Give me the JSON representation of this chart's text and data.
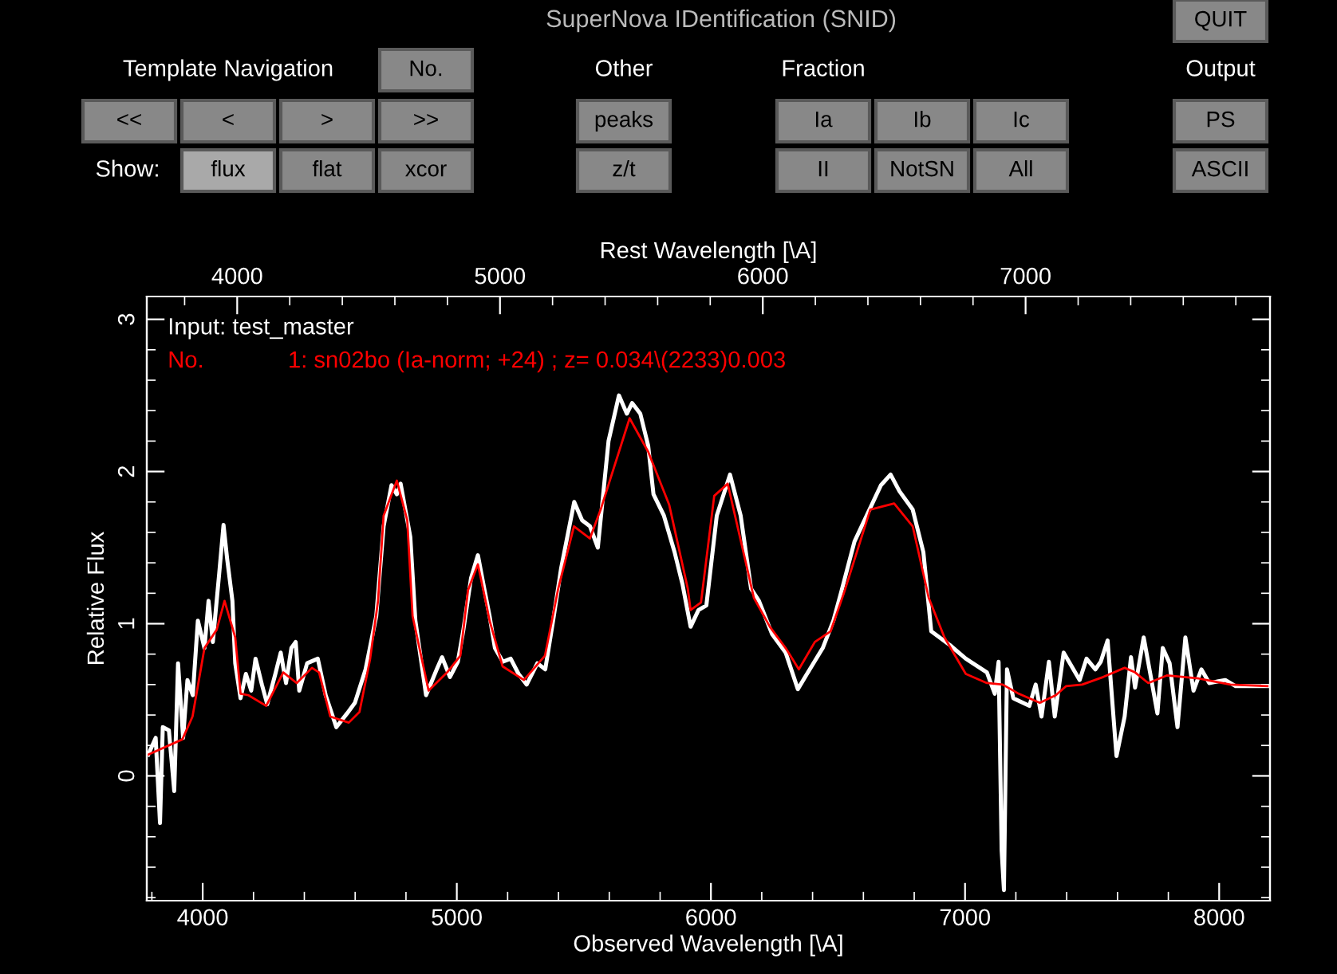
{
  "chart_data": {
    "type": "line",
    "title": "SuperNova IDentification (SNID)",
    "xlabel": "Observed Wavelength [\\A]",
    "x2label": "Rest Wavelength [\\A]",
    "ylabel": "Relative Flux",
    "xlim": [
      3780,
      8200
    ],
    "xticks": [
      4000,
      5000,
      6000,
      7000,
      8000
    ],
    "x2lim": [
      3656,
      7930
    ],
    "x2ticks": [
      4000,
      5000,
      6000,
      7000
    ],
    "ylim": [
      -0.82,
      3.15
    ],
    "yticks": [
      0,
      1,
      2,
      3
    ],
    "grid": false,
    "legend": "top left",
    "marker": "none",
    "line_style": "solid",
    "series": [
      {
        "name": "Input: test_master",
        "color": "#ffffff",
        "x": [
          3786,
          3815,
          3832,
          3843,
          3867,
          3888,
          3903,
          3923,
          3940,
          3961,
          3981,
          4007,
          4023,
          4040,
          4065,
          4082,
          4096,
          4117,
          4128,
          4149,
          4170,
          4191,
          4208,
          4233,
          4254,
          4286,
          4307,
          4328,
          4349,
          4366,
          4380,
          4411,
          4453,
          4484,
          4526,
          4568,
          4599,
          4641,
          4683,
          4712,
          4743,
          4764,
          4779,
          4817,
          4837,
          4879,
          4921,
          4942,
          4973,
          5004,
          5025,
          5056,
          5083,
          5108,
          5129,
          5150,
          5181,
          5212,
          5243,
          5275,
          5317,
          5348,
          5379,
          5410,
          5462,
          5493,
          5524,
          5555,
          5576,
          5597,
          5638,
          5669,
          5690,
          5722,
          5753,
          5774,
          5815,
          5857,
          5888,
          5920,
          5951,
          5982,
          6023,
          6075,
          6117,
          6158,
          6189,
          6241,
          6294,
          6342,
          6378,
          6440,
          6482,
          6513,
          6565,
          6669,
          6707,
          6742,
          6794,
          6836,
          6867,
          6940,
          7003,
          7086,
          7117,
          7132,
          7144,
          7153,
          7165,
          7190,
          7253,
          7278,
          7301,
          7330,
          7353,
          7388,
          7451,
          7478,
          7513,
          7534,
          7561,
          7596,
          7628,
          7653,
          7669,
          7703,
          7728,
          7757,
          7778,
          7805,
          7836,
          7867,
          7899,
          7930,
          7961,
          8024,
          8065,
          8190
        ],
        "values": [
          0.14,
          0.25,
          -0.31,
          0.32,
          0.3,
          -0.1,
          0.74,
          0.25,
          0.63,
          0.53,
          1.02,
          0.84,
          1.15,
          0.88,
          1.33,
          1.65,
          1.43,
          1.15,
          0.74,
          0.51,
          0.67,
          0.56,
          0.77,
          0.6,
          0.47,
          0.67,
          0.81,
          0.61,
          0.84,
          0.88,
          0.56,
          0.74,
          0.77,
          0.53,
          0.32,
          0.41,
          0.48,
          0.7,
          1.05,
          1.64,
          1.91,
          1.85,
          1.92,
          1.57,
          1.02,
          0.53,
          0.7,
          0.78,
          0.65,
          0.75,
          0.95,
          1.3,
          1.45,
          1.23,
          1.05,
          0.84,
          0.75,
          0.77,
          0.67,
          0.6,
          0.74,
          0.7,
          1.02,
          1.36,
          1.8,
          1.68,
          1.64,
          1.5,
          1.85,
          2.2,
          2.5,
          2.38,
          2.45,
          2.38,
          2.17,
          1.85,
          1.71,
          1.47,
          1.26,
          0.98,
          1.09,
          1.12,
          1.71,
          1.98,
          1.71,
          1.23,
          1.15,
          0.93,
          0.81,
          0.57,
          0.67,
          0.84,
          1.02,
          1.21,
          1.54,
          1.91,
          1.98,
          1.87,
          1.75,
          1.47,
          0.95,
          0.86,
          0.77,
          0.68,
          0.54,
          0.75,
          -0.49,
          -0.75,
          0.7,
          0.51,
          0.46,
          0.6,
          0.39,
          0.75,
          0.39,
          0.81,
          0.63,
          0.77,
          0.7,
          0.75,
          0.89,
          0.13,
          0.39,
          0.78,
          0.58,
          0.91,
          0.68,
          0.41,
          0.84,
          0.74,
          0.32,
          0.91,
          0.56,
          0.7,
          0.61,
          0.63,
          0.59,
          0.59
        ]
      },
      {
        "name": "No.             1: sn02bo (Ia-norm; +24) ; z= 0.034\\(2233)0.003",
        "color": "#ff0000",
        "x": [
          3786,
          3920,
          3960,
          4007,
          4055,
          4086,
          4128,
          4149,
          4180,
          4250,
          4317,
          4370,
          4430,
          4458,
          4502,
          4575,
          4617,
          4659,
          4690,
          4712,
          4764,
          4805,
          4826,
          4889,
          4962,
          5014,
          5044,
          5083,
          5117,
          5129,
          5180,
          5264,
          5347,
          5399,
          5461,
          5524,
          5566,
          5680,
          5753,
          5836,
          5909,
          5920,
          5961,
          6013,
          6066,
          6169,
          6232,
          6294,
          6346,
          6409,
          6471,
          6523,
          6627,
          6721,
          6794,
          6857,
          6919,
          7003,
          7086,
          7148,
          7211,
          7294,
          7357,
          7398,
          7461,
          7544,
          7628,
          7669,
          7721,
          7794,
          7919,
          8044,
          8190
        ],
        "values": [
          0.14,
          0.24,
          0.39,
          0.84,
          0.96,
          1.15,
          0.91,
          0.54,
          0.53,
          0.46,
          0.68,
          0.61,
          0.71,
          0.68,
          0.39,
          0.35,
          0.42,
          0.77,
          1.15,
          1.71,
          1.94,
          1.68,
          1.05,
          0.56,
          0.68,
          0.79,
          1.22,
          1.39,
          1.12,
          1.02,
          0.72,
          0.63,
          0.79,
          1.23,
          1.64,
          1.56,
          1.75,
          2.35,
          2.13,
          1.78,
          1.23,
          1.09,
          1.14,
          1.84,
          1.92,
          1.17,
          0.98,
          0.84,
          0.7,
          0.88,
          0.95,
          1.2,
          1.75,
          1.79,
          1.64,
          1.17,
          0.91,
          0.67,
          0.61,
          0.6,
          0.54,
          0.48,
          0.53,
          0.59,
          0.6,
          0.65,
          0.71,
          0.68,
          0.61,
          0.66,
          0.64,
          0.6,
          0.59
        ]
      }
    ],
    "annotations": [
      "QUIT",
      "Template Navigation",
      "No.",
      "Other",
      "Fraction",
      "Output",
      "<<",
      "<",
      ">",
      ">>",
      "peaks",
      "Ia",
      "Ib",
      "Ic",
      "PS",
      "Show:",
      "flux",
      "flat",
      "xcor",
      "z/t",
      "II",
      "NotSN",
      "All",
      "ASCII"
    ]
  }
}
